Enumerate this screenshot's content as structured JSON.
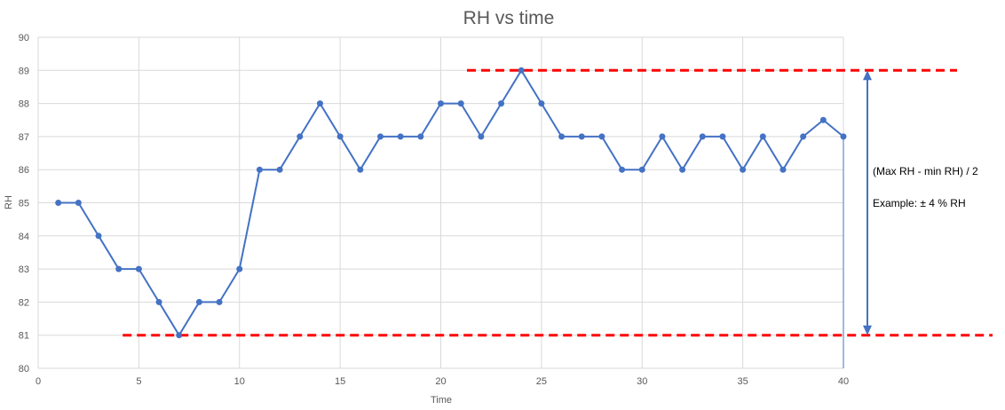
{
  "chart_data": {
    "type": "line",
    "title": "RH vs time",
    "xlabel": "Time",
    "ylabel": "RH",
    "xlim": [
      0,
      40
    ],
    "ylim": [
      80,
      90
    ],
    "xticks": [
      0,
      5,
      10,
      15,
      20,
      25,
      30,
      35,
      40
    ],
    "yticks": [
      80,
      81,
      82,
      83,
      84,
      85,
      86,
      87,
      88,
      89,
      90
    ],
    "grid": true,
    "series": [
      {
        "x": [
          1,
          2,
          3,
          4,
          5,
          6,
          7,
          8,
          9,
          10,
          11,
          12,
          13,
          14,
          15,
          16,
          17,
          18,
          19,
          20,
          21,
          22,
          23,
          24,
          25,
          26,
          27,
          28,
          29,
          30,
          31,
          32,
          33,
          34,
          35,
          36,
          37,
          38,
          39,
          40
        ],
        "y": [
          85,
          85,
          84,
          83,
          83,
          82,
          81,
          82,
          82,
          83,
          86,
          86,
          87,
          88,
          87,
          86,
          87,
          87,
          87,
          88,
          88,
          87,
          88,
          89,
          88,
          87,
          87,
          87,
          86,
          86,
          87,
          86,
          87,
          87,
          86,
          87,
          86,
          87,
          87.5,
          87
        ],
        "color": "#4472C4"
      }
    ],
    "reference_lines": [
      {
        "y": 89,
        "x_start": 21.3,
        "color": "#FF0000",
        "style": "dashed"
      },
      {
        "y": 81,
        "x_start": 4.2,
        "color": "#FF0000",
        "style": "dashed"
      }
    ],
    "annotations": [
      {
        "text": "(Max RH - min RH) / 2"
      },
      {
        "text": "Example: ± 4 % RH"
      }
    ],
    "arrow": {
      "from_y": 89,
      "to_y": 81,
      "color": "#4472C4"
    }
  }
}
